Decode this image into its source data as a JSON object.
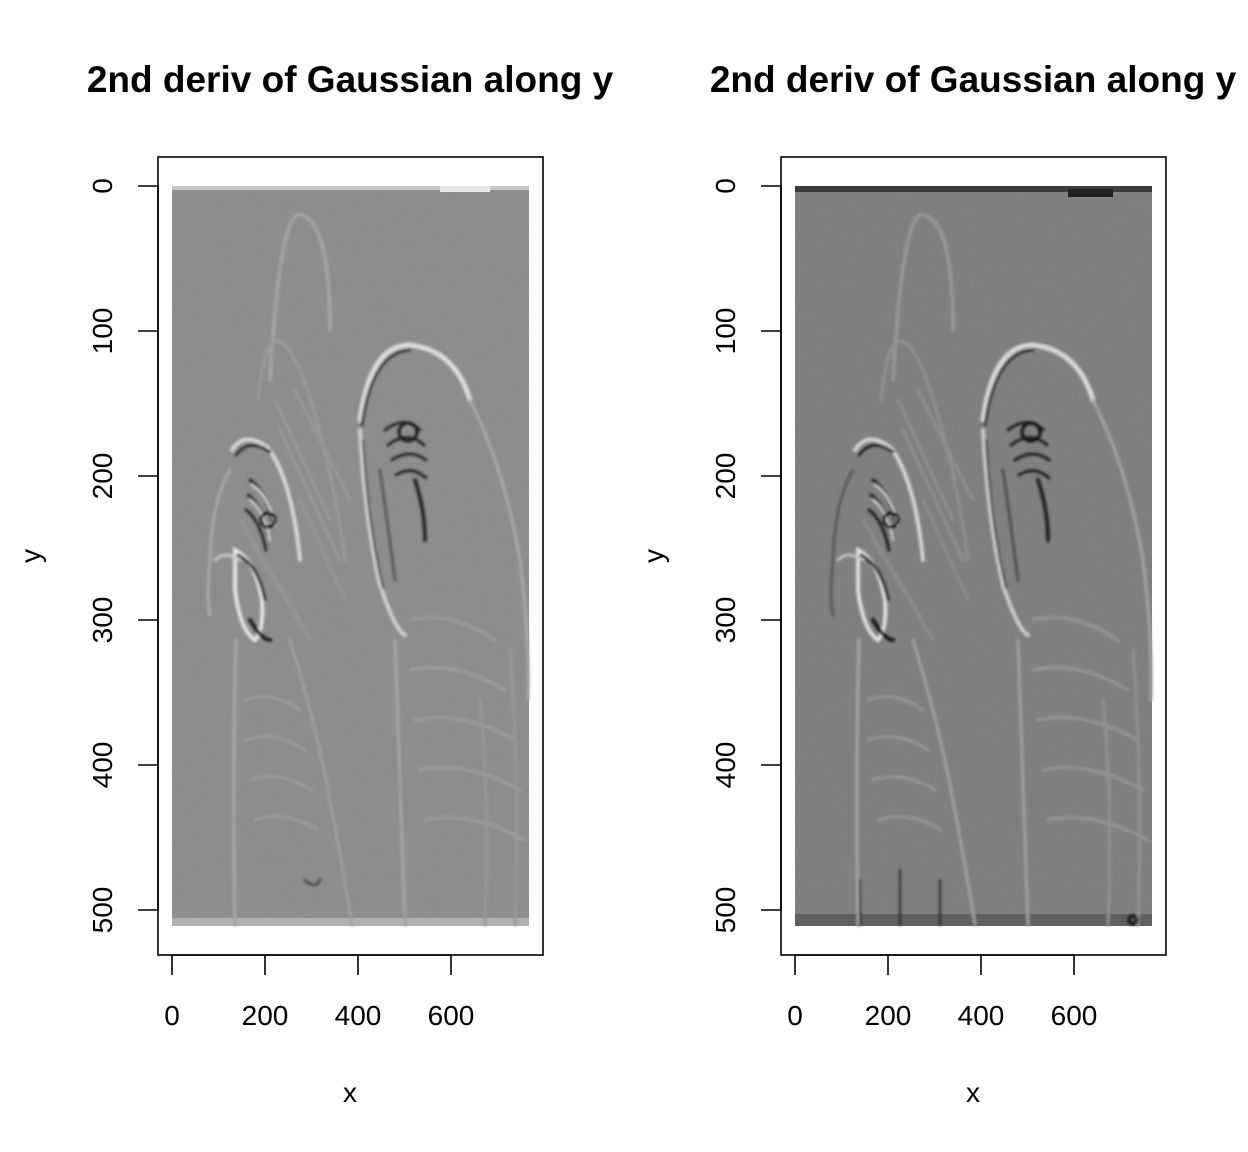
{
  "colors": {
    "image_gray": "#8a8a8a",
    "image_gray_dark": "#7a7a7a",
    "edge_light": "#cfcfcf",
    "edge_dark": "#3a3a3a"
  },
  "chart_data": [
    {
      "type": "heatmap",
      "title": "2nd deriv of Gaussian along y",
      "xlabel": "x",
      "ylabel": "y",
      "xlim": [
        0,
        768
      ],
      "ylim": [
        512,
        0
      ],
      "x_ticks": [
        "0",
        "200",
        "400",
        "600"
      ],
      "y_ticks": [
        "0",
        "100",
        "200",
        "300",
        "400",
        "500"
      ],
      "colormap": "grayscale",
      "content": "filtered image of two parrots"
    },
    {
      "type": "heatmap",
      "title": "2nd deriv of Gaussian along y",
      "xlabel": "x",
      "ylabel": "y",
      "xlim": [
        0,
        768
      ],
      "ylim": [
        512,
        0
      ],
      "x_ticks": [
        "0",
        "200",
        "400",
        "600"
      ],
      "y_ticks": [
        "0",
        "100",
        "200",
        "300",
        "400",
        "500"
      ],
      "colormap": "grayscale",
      "content": "filtered image of two parrots"
    }
  ]
}
